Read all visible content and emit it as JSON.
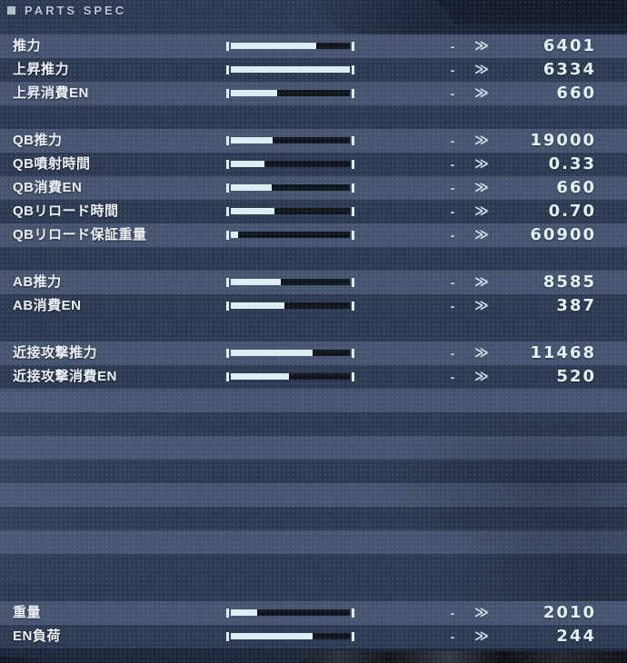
{
  "header": {
    "title": "PARTS SPEC"
  },
  "compare": {
    "dash": "-",
    "chevron": "≫"
  },
  "sections": [
    {
      "rows": [
        {
          "label": "推力",
          "value": "6401",
          "fill": 72
        },
        {
          "label": "上昇推力",
          "value": "6334",
          "fill": 100
        },
        {
          "label": "上昇消費EN",
          "value": "660",
          "fill": 39
        }
      ]
    },
    {
      "rows": [
        {
          "label": "QB推力",
          "value": "19000",
          "fill": 35
        },
        {
          "label": "QB噴射時間",
          "value": "0.33",
          "fill": 28
        },
        {
          "label": "QB消費EN",
          "value": "660",
          "fill": 34
        },
        {
          "label": "QBリロード時間",
          "value": "0.70",
          "fill": 37
        },
        {
          "label": "QBリロード保証重量",
          "value": "60900",
          "fill": 6
        }
      ]
    },
    {
      "rows": [
        {
          "label": "AB推力",
          "value": "8585",
          "fill": 42
        },
        {
          "label": "AB消費EN",
          "value": "387",
          "fill": 45
        }
      ]
    },
    {
      "rows": [
        {
          "label": "近接攻撃推力",
          "value": "11468",
          "fill": 69
        },
        {
          "label": "近接攻撃消費EN",
          "value": "520",
          "fill": 49
        }
      ]
    },
    {
      "rows": [
        {
          "label": "重量",
          "value": "2010",
          "fill": 22
        },
        {
          "label": "EN負荷",
          "value": "244",
          "fill": 69
        }
      ]
    }
  ],
  "colors": {
    "band_light": "#475470",
    "band_dark": "#2e3a52",
    "bar_fill": "#ddeef5",
    "bar_track": "#10151d",
    "value_text": "#e4f1f8",
    "label_text": "#eef3f7",
    "header_text": "#bcc8d6"
  }
}
